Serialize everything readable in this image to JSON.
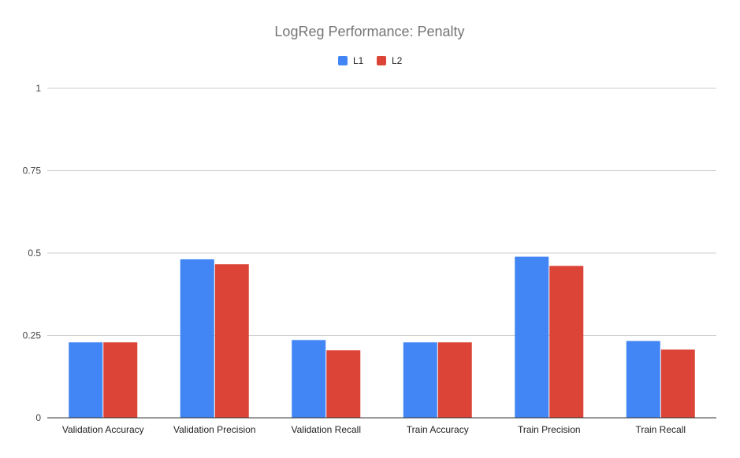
{
  "chart_data": {
    "type": "bar",
    "title": "LogReg Performance: Penalty",
    "xlabel": "",
    "ylabel": "",
    "categories": [
      "Validation Accuracy",
      "Validation Precision",
      "Validation Recall",
      "Train Accuracy",
      "Train Precision",
      "Train Recall"
    ],
    "series": [
      {
        "name": "L1",
        "color": "#4285f4",
        "values": [
          0.229,
          0.481,
          0.236,
          0.229,
          0.489,
          0.233
        ]
      },
      {
        "name": "L2",
        "color": "#db4437",
        "values": [
          0.229,
          0.466,
          0.205,
          0.229,
          0.461,
          0.207
        ]
      }
    ],
    "ylim": [
      0,
      1
    ],
    "yticks": [
      {
        "value": 0,
        "label": "0"
      },
      {
        "value": 0.25,
        "label": "0.25"
      },
      {
        "value": 0.5,
        "label": "0.5"
      },
      {
        "value": 0.75,
        "label": "0.75"
      },
      {
        "value": 1,
        "label": "1"
      }
    ],
    "grid": true,
    "legend_position": "top-center"
  }
}
